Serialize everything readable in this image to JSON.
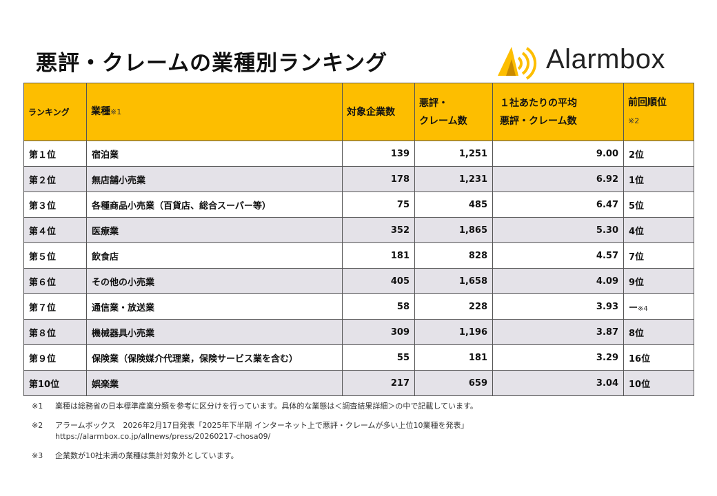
{
  "title": "悪評・クレームの業種別ランキング",
  "logo": {
    "text": "Alarmbox",
    "icon": "alarmbox-logo-icon",
    "accent": "#fdbe00"
  },
  "table": {
    "headers": {
      "rank": "ランキング",
      "industry": "業種",
      "industry_note": "※1",
      "companies": "対象企業数",
      "complaints_line1": "悪評・",
      "complaints_line2": "クレーム数",
      "average_line1": "１社あたりの平均",
      "average_line2": "悪評・クレーム数",
      "previous": "前回順位",
      "previous_note": "※2"
    },
    "rows": [
      {
        "rank": "第１位",
        "industry": "宿泊業",
        "companies": "139",
        "complaints": "1,251",
        "average": "9.00",
        "previous": "2位",
        "previous_note": ""
      },
      {
        "rank": "第２位",
        "industry": "無店舗小売業",
        "companies": "178",
        "complaints": "1,231",
        "average": "6.92",
        "previous": "1位",
        "previous_note": ""
      },
      {
        "rank": "第３位",
        "industry": "各種商品小売業（百貨店、総合スーパー等）",
        "companies": "75",
        "complaints": "485",
        "average": "6.47",
        "previous": "5位",
        "previous_note": ""
      },
      {
        "rank": "第４位",
        "industry": "医療業",
        "companies": "352",
        "complaints": "1,865",
        "average": "5.30",
        "previous": "4位",
        "previous_note": ""
      },
      {
        "rank": "第５位",
        "industry": "飲食店",
        "companies": "181",
        "complaints": "828",
        "average": "4.57",
        "previous": "7位",
        "previous_note": ""
      },
      {
        "rank": "第６位",
        "industry": "その他の小売業",
        "companies": "405",
        "complaints": "1,658",
        "average": "4.09",
        "previous": "9位",
        "previous_note": ""
      },
      {
        "rank": "第７位",
        "industry": "通信業・放送業",
        "companies": "58",
        "complaints": "228",
        "average": "3.93",
        "previous": "ー",
        "previous_note": "※4"
      },
      {
        "rank": "第８位",
        "industry": "機械器具小売業",
        "companies": "309",
        "complaints": "1,196",
        "average": "3.87",
        "previous": "8位",
        "previous_note": ""
      },
      {
        "rank": "第９位",
        "industry": "保険業（保険媒介代理業，保険サービス業を含む）",
        "companies": "55",
        "complaints": "181",
        "average": "3.29",
        "previous": "16位",
        "previous_note": ""
      },
      {
        "rank": "第10位",
        "industry": "娯楽業",
        "companies": "217",
        "complaints": "659",
        "average": "3.04",
        "previous": "10位",
        "previous_note": ""
      }
    ]
  },
  "notes": [
    {
      "mark": "※1",
      "text": "業種は総務省の日本標準産業分類を参考に区分けを行っています。具体的な業態は＜調査結果詳細＞の中で記載しています。",
      "url": ""
    },
    {
      "mark": "※2",
      "text": "アラームボックス　2026年2月17日発表「2025年下半期 インターネット上で悪評・クレームが多い上位10業種を発表」",
      "url": "https://alarmbox.co.jp/allnews/press/20260217-chosa09/"
    },
    {
      "mark": "※3",
      "text": "企業数が10社未満の業種は集計対象外としています。",
      "url": ""
    }
  ]
}
